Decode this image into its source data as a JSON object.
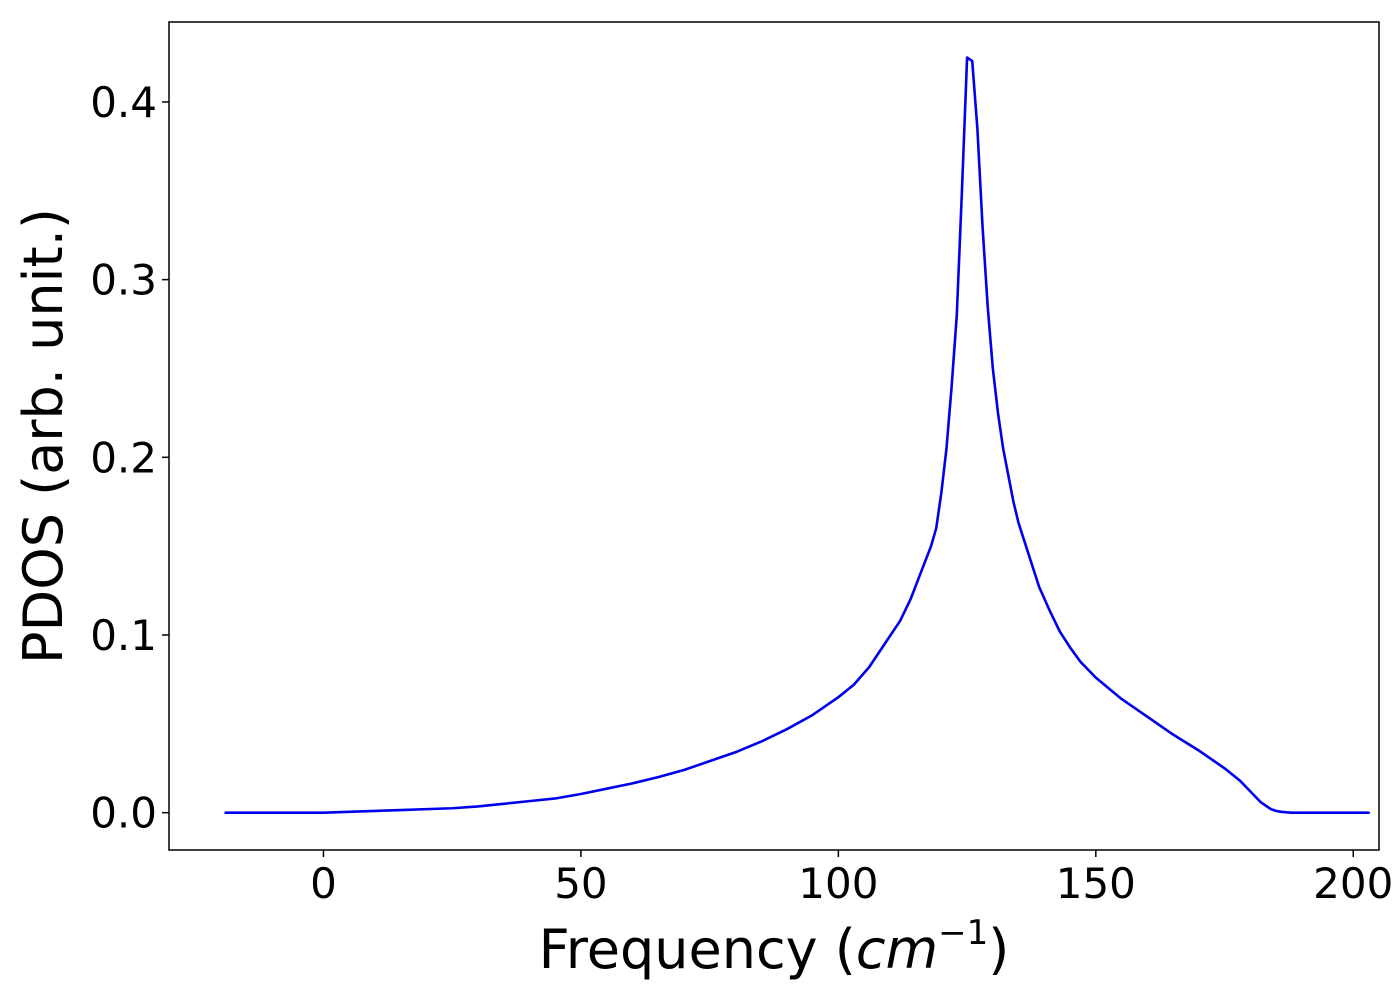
{
  "chart_data": {
    "type": "line",
    "xlabel_text": "Frequency (",
    "xlabel_math": "cm",
    "xlabel_sup": "−1",
    "xlabel_close": ")",
    "ylabel": "PDOS (arb. unit.)",
    "xlim": [
      -30,
      205
    ],
    "ylim": [
      -0.021,
      0.445
    ],
    "xticks": [
      {
        "value": 0,
        "label": "0"
      },
      {
        "value": 50,
        "label": "50"
      },
      {
        "value": 100,
        "label": "100"
      },
      {
        "value": 150,
        "label": "150"
      },
      {
        "value": 200,
        "label": "200"
      }
    ],
    "yticks": [
      {
        "value": 0.0,
        "label": "0.0"
      },
      {
        "value": 0.1,
        "label": "0.1"
      },
      {
        "value": 0.2,
        "label": "0.2"
      },
      {
        "value": 0.3,
        "label": "0.3"
      },
      {
        "value": 0.4,
        "label": "0.4"
      }
    ],
    "grid": false,
    "series": [
      {
        "color": "#0000ee",
        "x": [
          -19,
          -10,
          0,
          5,
          10,
          15,
          20,
          25,
          30,
          35,
          40,
          45,
          50,
          55,
          60,
          65,
          70,
          75,
          80,
          85,
          90,
          95,
          100,
          103,
          106,
          109,
          112,
          114,
          116,
          118,
          119,
          120,
          121,
          122,
          123,
          124,
          125,
          126,
          127,
          128,
          129,
          130,
          131,
          132,
          133,
          134,
          135,
          137,
          139,
          141,
          143,
          145,
          147,
          150,
          155,
          160,
          165,
          170,
          175,
          178,
          180,
          182,
          184,
          185,
          186,
          187,
          188,
          190,
          195,
          203
        ],
        "y": [
          0,
          0,
          0,
          0.0005,
          0.001,
          0.0015,
          0.002,
          0.0025,
          0.0035,
          0.005,
          0.0065,
          0.008,
          0.0105,
          0.0135,
          0.0165,
          0.02,
          0.024,
          0.029,
          0.034,
          0.04,
          0.047,
          0.055,
          0.065,
          0.072,
          0.082,
          0.095,
          0.108,
          0.12,
          0.135,
          0.15,
          0.16,
          0.18,
          0.205,
          0.24,
          0.28,
          0.35,
          0.425,
          0.423,
          0.385,
          0.33,
          0.285,
          0.25,
          0.225,
          0.205,
          0.19,
          0.175,
          0.163,
          0.145,
          0.127,
          0.114,
          0.102,
          0.093,
          0.085,
          0.076,
          0.064,
          0.054,
          0.044,
          0.035,
          0.025,
          0.018,
          0.012,
          0.006,
          0.002,
          0.001,
          0.0005,
          0.0002,
          0,
          0,
          0,
          0
        ]
      }
    ]
  }
}
